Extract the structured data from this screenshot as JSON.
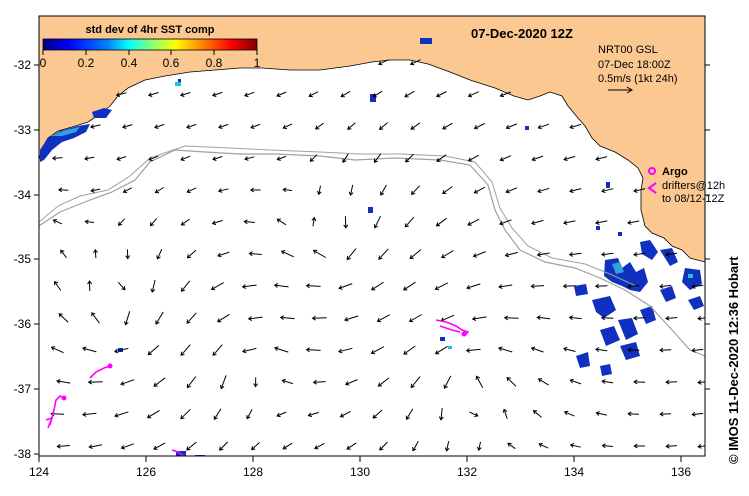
{
  "map": {
    "title_date": "07-Dec-2020 12Z",
    "colorbar": {
      "title": "std dev of 4hr SST comp",
      "ticks": [
        "0",
        "0.2",
        "0.4",
        "0.6",
        "0.8",
        "1"
      ],
      "colormap": [
        "#00007f",
        "#0000ff",
        "#007fff",
        "#00ffff",
        "#7fff7f",
        "#ffff00",
        "#ff7f00",
        "#ff0000",
        "#7f0000"
      ]
    },
    "product_info": {
      "line1": "NRT00 GSL",
      "line2": "07-Dec 18:00Z",
      "line3": "0.5m/s (1kt 24h)"
    },
    "argo": {
      "label": "Argo",
      "drifters_label": "drifters@12h",
      "drifters_range": "to 08/12-12Z"
    },
    "credit": "© IMOS 11-Dec-2020 12:36 Hobart",
    "lat_ticks": [
      "-32",
      "-33",
      "-34",
      "-35",
      "-36",
      "-37",
      "-38"
    ],
    "lon_ticks": [
      "124",
      "126",
      "128",
      "130",
      "132",
      "134",
      "136"
    ],
    "colors": {
      "land": "#fcc891",
      "drifter": "#ff00ff",
      "isobath": "#a0a0a0",
      "vector": "#000000"
    }
  }
}
